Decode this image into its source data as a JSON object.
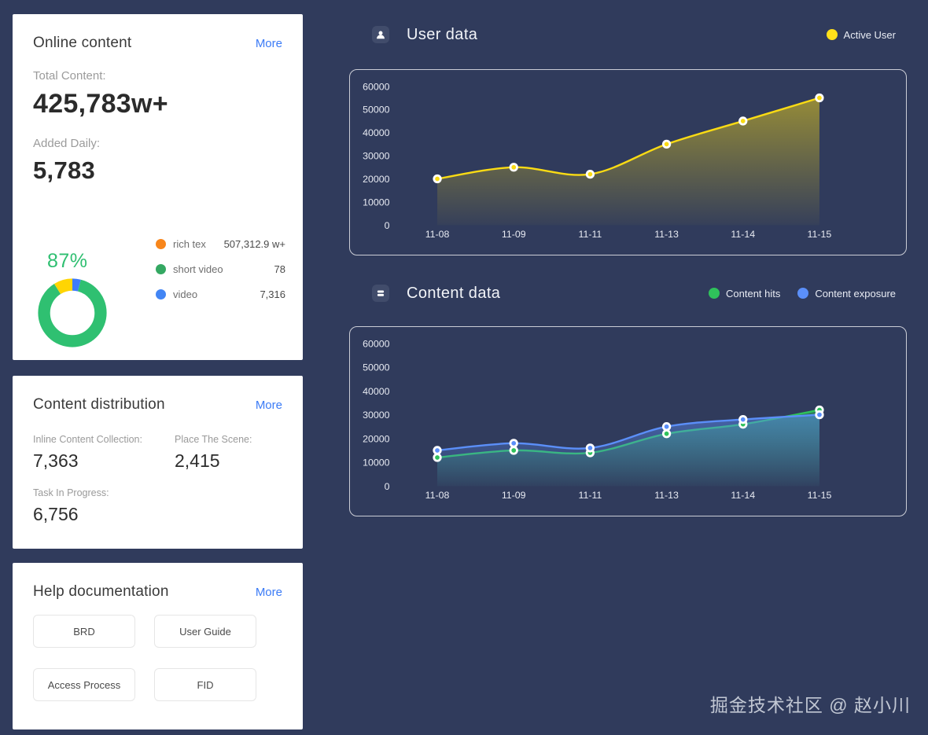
{
  "online_content": {
    "title": "Online content",
    "more_label": "More",
    "stats": [
      {
        "label": "Total Content:",
        "value": "425,783w+"
      },
      {
        "label": "Added Daily:",
        "value": "5,783"
      }
    ],
    "donut": {
      "percent_label": "87%",
      "segments": [
        {
          "color": "#3e7bfa",
          "pct": 4
        },
        {
          "color": "#2fc071",
          "pct": 87
        },
        {
          "color": "#ffd503",
          "pct": 9
        }
      ]
    },
    "legend": [
      {
        "name": "rich tex",
        "color": "#f8861b",
        "value": "507,312.9 w+"
      },
      {
        "name": "short video",
        "color": "#34a862",
        "value": "78"
      },
      {
        "name": "video",
        "color": "#4285f4",
        "value": "7,316"
      }
    ]
  },
  "content_distribution": {
    "title": "Content distribution",
    "more_label": "More",
    "stats": [
      {
        "label": "Inline Content Collection:",
        "value": "7,363"
      },
      {
        "label": "Place The Scene:",
        "value": "2,415"
      },
      {
        "label": "Task In Progress:",
        "value": "6,756"
      }
    ]
  },
  "help_documentation": {
    "title": "Help documentation",
    "more_label": "More",
    "buttons": [
      "BRD",
      "User Guide",
      "Access Process",
      "FID"
    ]
  },
  "user_data_section": {
    "title": "User data",
    "icon": "user-icon",
    "legend": [
      {
        "name": "Active User",
        "color": "#ffe01a"
      }
    ]
  },
  "content_data_section": {
    "title": "Content data",
    "icon": "list-icon",
    "legend": [
      {
        "name": "Content hits",
        "color": "#2fc25b"
      },
      {
        "name": "Content exposure",
        "color": "#5b8ff9"
      }
    ]
  },
  "chart_data": [
    {
      "type": "area",
      "title": "User data",
      "x": [
        "11-08",
        "11-09",
        "11-11",
        "11-13",
        "11-14",
        "11-15"
      ],
      "series": [
        {
          "name": "Active User",
          "color": "#fadb14",
          "values": [
            20000,
            25000,
            22000,
            35000,
            45000,
            55000
          ]
        }
      ],
      "ylim": [
        0,
        60000
      ],
      "yticks": [
        0,
        10000,
        20000,
        30000,
        40000,
        50000,
        60000
      ],
      "grid": false,
      "legend_position": "top-right"
    },
    {
      "type": "area",
      "title": "Content data",
      "x": [
        "11-08",
        "11-09",
        "11-11",
        "11-13",
        "11-14",
        "11-15"
      ],
      "series": [
        {
          "name": "Content hits",
          "color": "#2fc25b",
          "values": [
            12000,
            15000,
            14000,
            22000,
            26000,
            32000
          ]
        },
        {
          "name": "Content exposure",
          "color": "#5b8ff9",
          "values": [
            15000,
            18000,
            16000,
            25000,
            28000,
            30000
          ]
        }
      ],
      "ylim": [
        0,
        60000
      ],
      "yticks": [
        0,
        10000,
        20000,
        30000,
        40000,
        50000,
        60000
      ],
      "grid": false,
      "legend_position": "top-right"
    }
  ],
  "watermark": "掘金技术社区 @ 赵小川"
}
